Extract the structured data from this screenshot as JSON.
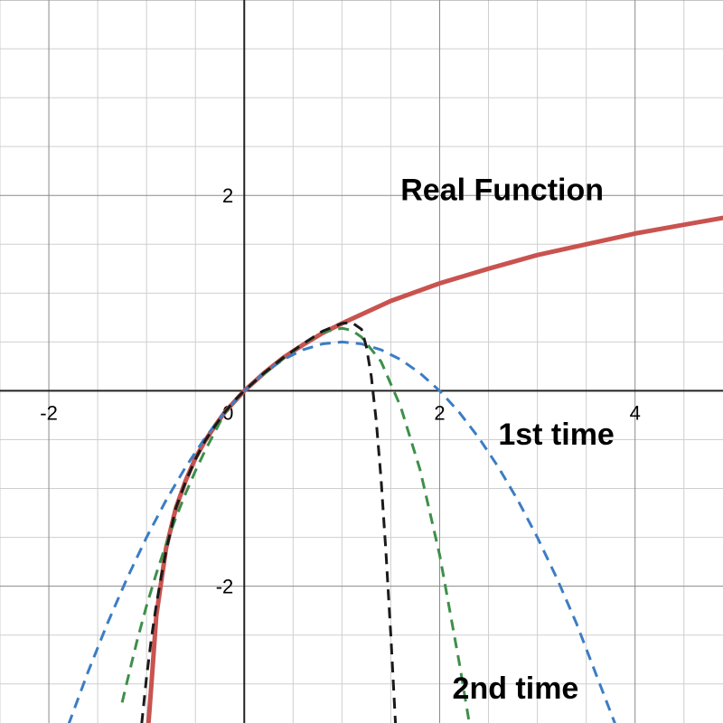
{
  "chart_data": {
    "type": "line",
    "xlim": [
      -2.5,
      4.9
    ],
    "ylim": [
      -3.4,
      4.0
    ],
    "grid": true,
    "x_ticks": [
      {
        "value": -2,
        "label": "-2"
      },
      {
        "value": 0,
        "label": "0"
      },
      {
        "value": 2,
        "label": "2"
      },
      {
        "value": 4,
        "label": "4"
      }
    ],
    "y_ticks": [
      {
        "value": 2,
        "label": "2"
      },
      {
        "value": -2,
        "label": "-2"
      }
    ],
    "series": [
      {
        "key": "real",
        "color": "#c9534f",
        "style": "solid",
        "x": [
          -0.98,
          -0.95,
          -0.9,
          -0.8,
          -0.7,
          -0.6,
          -0.5,
          -0.4,
          -0.3,
          -0.2,
          -0.1,
          0,
          0.2,
          0.4,
          0.6,
          0.8,
          1.0,
          1.5,
          2.0,
          2.5,
          3.0,
          3.5,
          4.0,
          4.5,
          4.9
        ],
        "y": [
          -3.4,
          -3.0,
          -2.3,
          -1.61,
          -1.2,
          -0.92,
          -0.69,
          -0.51,
          -0.36,
          -0.22,
          -0.11,
          0,
          0.18,
          0.34,
          0.47,
          0.59,
          0.69,
          0.92,
          1.1,
          1.25,
          1.39,
          1.5,
          1.61,
          1.7,
          1.77
        ]
      },
      {
        "key": "taylor1",
        "color": "#3b7dc4",
        "style": "dashed",
        "x": [
          -1.8,
          -1.6,
          -1.4,
          -1.2,
          -1.0,
          -0.8,
          -0.6,
          -0.4,
          -0.2,
          0,
          0.2,
          0.4,
          0.6,
          0.8,
          1.0,
          1.2,
          1.4,
          1.6,
          1.8,
          2.0,
          2.2,
          2.4,
          2.6,
          2.8,
          3.0,
          3.2,
          3.4,
          3.8
        ],
        "y": [
          -3.42,
          -2.88,
          -2.38,
          -1.92,
          -1.5,
          -1.12,
          -0.78,
          -0.48,
          -0.22,
          0,
          0.18,
          0.32,
          0.42,
          0.48,
          0.5,
          0.48,
          0.42,
          0.32,
          0.18,
          0,
          -0.22,
          -0.48,
          -0.78,
          -1.12,
          -1.5,
          -1.92,
          -2.38,
          -3.42
        ]
      },
      {
        "key": "taylor2",
        "color": "#3d8f4a",
        "style": "dashed",
        "x": [
          -1.25,
          -1.2,
          -1.1,
          -1.0,
          -0.9,
          -0.8,
          -0.7,
          -0.6,
          -0.5,
          -0.4,
          -0.3,
          -0.2,
          -0.1,
          0,
          0.2,
          0.4,
          0.6,
          0.8,
          1.0,
          1.1,
          1.2,
          1.4,
          1.6,
          1.8,
          2.0,
          2.2,
          2.3
        ],
        "y": [
          -3.19,
          -2.98,
          -2.57,
          -2.2,
          -1.87,
          -1.57,
          -1.3,
          -1.05,
          -0.82,
          -0.61,
          -0.42,
          -0.23,
          -0.1,
          0,
          0.17,
          0.33,
          0.48,
          0.6,
          0.64,
          0.62,
          0.55,
          0.3,
          -0.16,
          -0.81,
          -1.68,
          -2.78,
          -3.38
        ]
      },
      {
        "key": "taylor3",
        "color": "#1a1a1a",
        "style": "dashed",
        "x": [
          -1.05,
          -1.0,
          -0.95,
          -0.9,
          -0.85,
          -0.8,
          -0.7,
          -0.6,
          -0.5,
          -0.4,
          -0.3,
          -0.2,
          -0.1,
          0,
          0.2,
          0.4,
          0.6,
          0.8,
          1.0,
          1.1,
          1.2,
          1.25,
          1.3,
          1.35,
          1.4,
          1.45,
          1.5,
          1.55
        ],
        "y": [
          -3.41,
          -2.93,
          -2.53,
          -2.19,
          -1.9,
          -1.64,
          -1.2,
          -0.93,
          -0.7,
          -0.51,
          -0.36,
          -0.22,
          -0.1,
          0,
          0.18,
          0.34,
          0.48,
          0.61,
          0.69,
          0.7,
          0.63,
          0.45,
          0.15,
          -0.3,
          -0.9,
          -1.65,
          -2.5,
          -3.45
        ]
      }
    ],
    "annotations": [
      {
        "text": "Real Function",
        "x": 1.6,
        "y": 1.95
      },
      {
        "text": "1st time",
        "x": 2.6,
        "y": -0.55
      },
      {
        "text": "2nd time",
        "x": 2.13,
        "y": -3.15
      }
    ]
  }
}
